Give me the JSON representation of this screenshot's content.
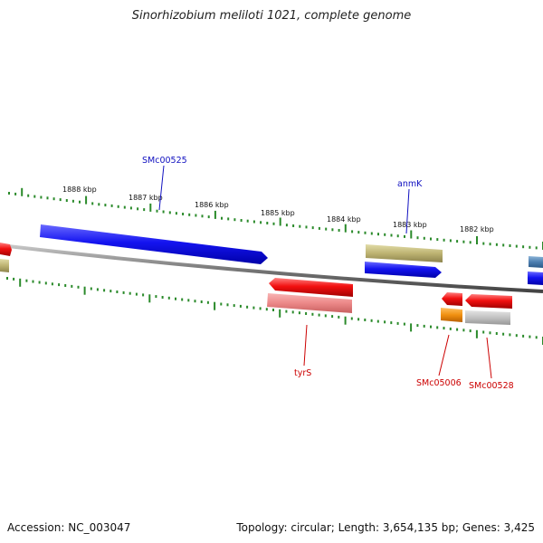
{
  "title": "Sinorhizobium meliloti 1021, complete genome",
  "footer": {
    "accession": "Accession: NC_003047",
    "summary": "Topology: circular; Length: 3,654,135 bp; Genes: 3,425"
  },
  "colors": {
    "forward_strand": "#1010e0",
    "reverse_strand": "#e81010",
    "rna_gene": "#b8b070",
    "tick": "#2a8a2a",
    "backbone": "#808080",
    "forward_label": "#1010c0",
    "reverse_label": "#cc0000"
  },
  "scale_labels": [
    "1888 kbp",
    "1887 kbp",
    "1886 kbp",
    "1885 kbp",
    "1884 kbp",
    "1883 kbp",
    "1882 kbp"
  ],
  "gene_labels": [
    {
      "id": "smc00525",
      "text": "SMc00525",
      "strand": "forward"
    },
    {
      "id": "anmk",
      "text": "anmK",
      "strand": "forward"
    },
    {
      "id": "tyrs",
      "text": "tyrS",
      "strand": "reverse"
    },
    {
      "id": "smc05006",
      "text": "SMc05006",
      "strand": "reverse"
    },
    {
      "id": "smc00528",
      "text": "SMc00528",
      "strand": "reverse"
    }
  ]
}
